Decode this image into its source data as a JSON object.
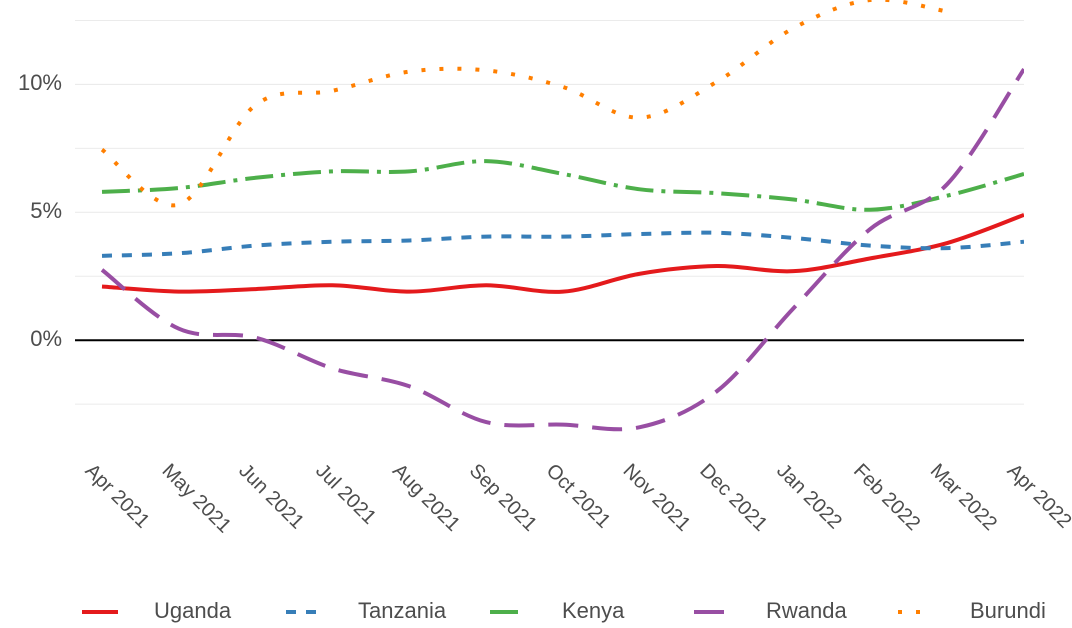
{
  "chart_data": {
    "type": "line",
    "categories": [
      "Apr 2021",
      "May 2021",
      "Jun 2021",
      "Jul 2021",
      "Aug 2021",
      "Sep 2021",
      "Oct 2021",
      "Nov 2021",
      "Dec 2021",
      "Jan 2022",
      "Feb 2022",
      "Mar 2022",
      "Apr 2022"
    ],
    "series": [
      {
        "name": "Uganda",
        "color": "#e41a1c",
        "dash": "solid",
        "values": [
          2.1,
          1.9,
          2.0,
          2.15,
          1.9,
          2.15,
          1.9,
          2.6,
          2.9,
          2.7,
          3.2,
          3.8,
          4.9
        ]
      },
      {
        "name": "Tanzania",
        "color": "#377eb8",
        "dash": "dashed",
        "values": [
          3.3,
          3.4,
          3.7,
          3.85,
          3.9,
          4.05,
          4.05,
          4.15,
          4.2,
          4.0,
          3.7,
          3.6,
          3.85
        ]
      },
      {
        "name": "Kenya",
        "color": "#4daf4a",
        "dash": "dashdot",
        "values": [
          5.8,
          5.95,
          6.35,
          6.6,
          6.6,
          7.0,
          6.5,
          5.9,
          5.75,
          5.5,
          5.1,
          5.65,
          6.5
        ]
      },
      {
        "name": "Rwanda",
        "color": "#984ea3",
        "dash": "longdash",
        "values": [
          2.75,
          0.45,
          0.1,
          -1.1,
          -1.8,
          -3.2,
          -3.3,
          -3.4,
          -2.0,
          1.25,
          4.35,
          6.1,
          10.6
        ]
      },
      {
        "name": "Burundi",
        "color": "#ff7f00",
        "dash": "dotted",
        "values": [
          7.45,
          5.3,
          9.2,
          9.75,
          10.5,
          10.55,
          9.9,
          8.7,
          10.1,
          12.2,
          13.3,
          12.85,
          null
        ]
      }
    ],
    "ylim": [
      -3.9,
      13.3
    ],
    "yticks": [
      {
        "value": 0,
        "label": "0%"
      },
      {
        "value": 5,
        "label": "5%"
      },
      {
        "value": 10,
        "label": "10%"
      }
    ],
    "minor_yticks": [
      -2.5,
      2.5,
      7.5,
      12.5
    ],
    "grid": true,
    "legend": "bottom"
  }
}
